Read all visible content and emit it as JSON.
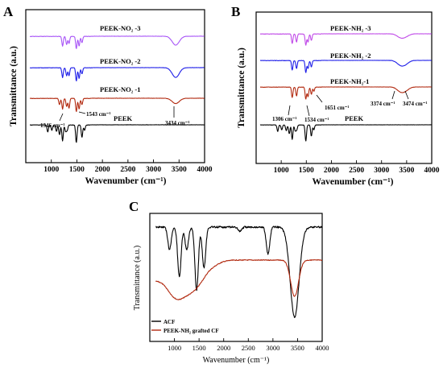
{
  "chart_data": [
    {
      "panel": "A",
      "type": "line",
      "xlabel": "Wavenumber (cm⁻¹)",
      "ylabel": "Transmittance (a.u.)",
      "xlim": [
        500,
        4000
      ],
      "xticks": [
        1000,
        1500,
        2000,
        2500,
        3000,
        3500,
        4000
      ],
      "series": [
        {
          "name": "PEEK-NO₂ -3",
          "color": "#a855f7",
          "offset": 3,
          "peaks": [
            [
              1220,
              0.55
            ],
            [
              1300,
              0.45
            ],
            [
              1346,
              0.4
            ],
            [
              1490,
              0.7
            ],
            [
              1543,
              0.55
            ],
            [
              1600,
              0.35
            ],
            [
              3434,
              0.5
            ]
          ]
        },
        {
          "name": "PEEK-NO₂ -2",
          "color": "#1e1ee8",
          "offset": 2,
          "peaks": [
            [
              1220,
              0.55
            ],
            [
              1300,
              0.45
            ],
            [
              1346,
              0.45
            ],
            [
              1490,
              0.75
            ],
            [
              1543,
              0.6
            ],
            [
              1600,
              0.35
            ],
            [
              3434,
              0.55
            ]
          ]
        },
        {
          "name": "PEEK-NO₂ -1",
          "color": "#b22a10",
          "offset": 1,
          "peaks": [
            [
              1160,
              0.35
            ],
            [
              1220,
              0.6
            ],
            [
              1300,
              0.45
            ],
            [
              1346,
              0.55
            ],
            [
              1490,
              0.75
            ],
            [
              1543,
              0.6
            ],
            [
              1600,
              0.35
            ],
            [
              3434,
              0.3
            ]
          ]
        },
        {
          "name": "PEEK",
          "color": "#000000",
          "offset": 0,
          "peaks": [
            [
              930,
              0.4
            ],
            [
              1010,
              0.3
            ],
            [
              1100,
              0.35
            ],
            [
              1160,
              0.55
            ],
            [
              1220,
              0.9
            ],
            [
              1280,
              0.35
            ],
            [
              1310,
              0.3
            ],
            [
              1490,
              1.0
            ],
            [
              1600,
              0.7
            ],
            [
              1650,
              0.3
            ]
          ]
        }
      ],
      "annotations": [
        "1346 cm⁻¹",
        "1543 cm⁻¹",
        "3434 cm⁻¹"
      ]
    },
    {
      "panel": "B",
      "type": "line",
      "xlabel": "Wavenumber (cm⁻¹)",
      "ylabel": "Transmittance (a.u.)",
      "xlim": [
        500,
        4000
      ],
      "xticks": [
        1000,
        1500,
        2000,
        2500,
        3000,
        3500,
        4000
      ],
      "series": [
        {
          "name": "PEEK-NH₂ -3",
          "color": "#c04ae8",
          "offset": 3,
          "peaks": [
            [
              1220,
              0.6
            ],
            [
              1306,
              0.5
            ],
            [
              1490,
              0.7
            ],
            [
              1534,
              0.5
            ],
            [
              1600,
              0.4
            ],
            [
              3374,
              0.2
            ],
            [
              3474,
              0.15
            ]
          ]
        },
        {
          "name": "PEEK-NH₂ -2",
          "color": "#1e1ee8",
          "offset": 2,
          "peaks": [
            [
              1220,
              0.6
            ],
            [
              1306,
              0.5
            ],
            [
              1490,
              0.75
            ],
            [
              1534,
              0.5
            ],
            [
              1600,
              0.4
            ],
            [
              3374,
              0.25
            ],
            [
              3474,
              0.2
            ]
          ]
        },
        {
          "name": "PEEK-NH₂-1",
          "color": "#b22a10",
          "offset": 1,
          "peaks": [
            [
              1220,
              0.65
            ],
            [
              1306,
              0.55
            ],
            [
              1490,
              0.75
            ],
            [
              1534,
              0.6
            ],
            [
              1600,
              0.45
            ],
            [
              1651,
              0.25
            ],
            [
              3374,
              0.25
            ],
            [
              3474,
              0.2
            ]
          ]
        },
        {
          "name": "PEEK",
          "color": "#000000",
          "offset": 0,
          "peaks": [
            [
              930,
              0.4
            ],
            [
              1010,
              0.3
            ],
            [
              1100,
              0.35
            ],
            [
              1160,
              0.55
            ],
            [
              1220,
              0.9
            ],
            [
              1280,
              0.35
            ],
            [
              1310,
              0.3
            ],
            [
              1490,
              1.0
            ],
            [
              1600,
              0.7
            ],
            [
              1650,
              0.3
            ]
          ]
        }
      ],
      "annotations": [
        "1306 cm⁻¹",
        "1534 cm⁻¹",
        "1651 cm⁻¹",
        "3374 cm⁻¹",
        "3474 cm⁻¹"
      ]
    },
    {
      "panel": "C",
      "type": "line",
      "xlabel": "Wavenumber (cm⁻¹)",
      "ylabel": "Transmittance (a.u.)",
      "xlim": [
        500,
        4000
      ],
      "xticks": [
        1000,
        1500,
        2000,
        2500,
        3000,
        3500,
        4000
      ],
      "legend_position": "bottom-left",
      "series": [
        {
          "name": "ACF",
          "color": "#000000"
        },
        {
          "name": "PEEK-NH₂ grafted CF",
          "color": "#b22a10"
        }
      ]
    }
  ],
  "text": {
    "panel_a": "A",
    "panel_b": "B",
    "panel_c": "C",
    "a_ylabel": "Transmittance (a.u.)",
    "a_xlabel": "Wavenumber (cm⁻¹)",
    "b_ylabel": "Transmittance (a.u.)",
    "b_xlabel": "Wavenumber (cm⁻¹)",
    "c_ylabel": "Transmittance (a.u.)",
    "c_xlabel": "Wavenumber (cm⁻¹)",
    "a_label_3": "PEEK-NO₂ -3",
    "a_label_2": "PEEK-NO₂ -2",
    "a_label_1": "PEEK-NO₂ -1",
    "a_label_0": "PEEK",
    "a_ann_1346": "1346 cm⁻¹",
    "a_ann_1543": "1543 cm⁻¹",
    "a_ann_3434": "3434 cm⁻¹",
    "b_label_3": "PEEK-NH₂ -3",
    "b_label_2": "PEEK-NH₂ -2",
    "b_label_1": "PEEK-NH₂-1",
    "b_label_0": "PEEK",
    "b_ann_1306": "1306 cm⁻¹",
    "b_ann_1534": "1534 cm⁻¹",
    "b_ann_1651": "1651 cm⁻¹",
    "b_ann_3374": "3374 cm⁻¹",
    "b_ann_3474": "3474 cm⁻¹",
    "c_legend_1": "ACF",
    "c_legend_2": "PEEK-NH₂ grafted CF"
  }
}
